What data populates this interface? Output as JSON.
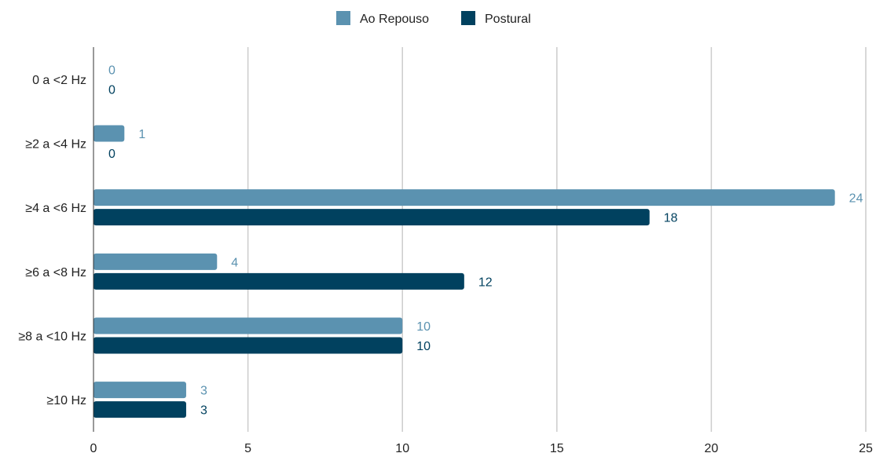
{
  "chart_data": {
    "type": "bar",
    "orientation": "horizontal",
    "title": "",
    "xlabel": "",
    "ylabel": "",
    "categories": [
      "0 a <2 Hz",
      "≥2 a <4 Hz",
      "≥4 a <6 Hz",
      "≥6 a <8 Hz",
      "≥8 a <10 Hz",
      "≥10 Hz"
    ],
    "series": [
      {
        "name": "Ao Repouso",
        "color": "#5b92b0",
        "values": [
          0,
          1,
          24,
          4,
          10,
          3
        ]
      },
      {
        "name": "Postural",
        "color": "#01415f",
        "values": [
          0,
          0,
          18,
          12,
          10,
          3
        ]
      }
    ],
    "xlim": [
      0,
      25
    ],
    "xticks": [
      "0",
      "5",
      "10",
      "15",
      "20",
      "25"
    ],
    "grid": true,
    "legend_position": "top-center",
    "data_labels": true
  }
}
